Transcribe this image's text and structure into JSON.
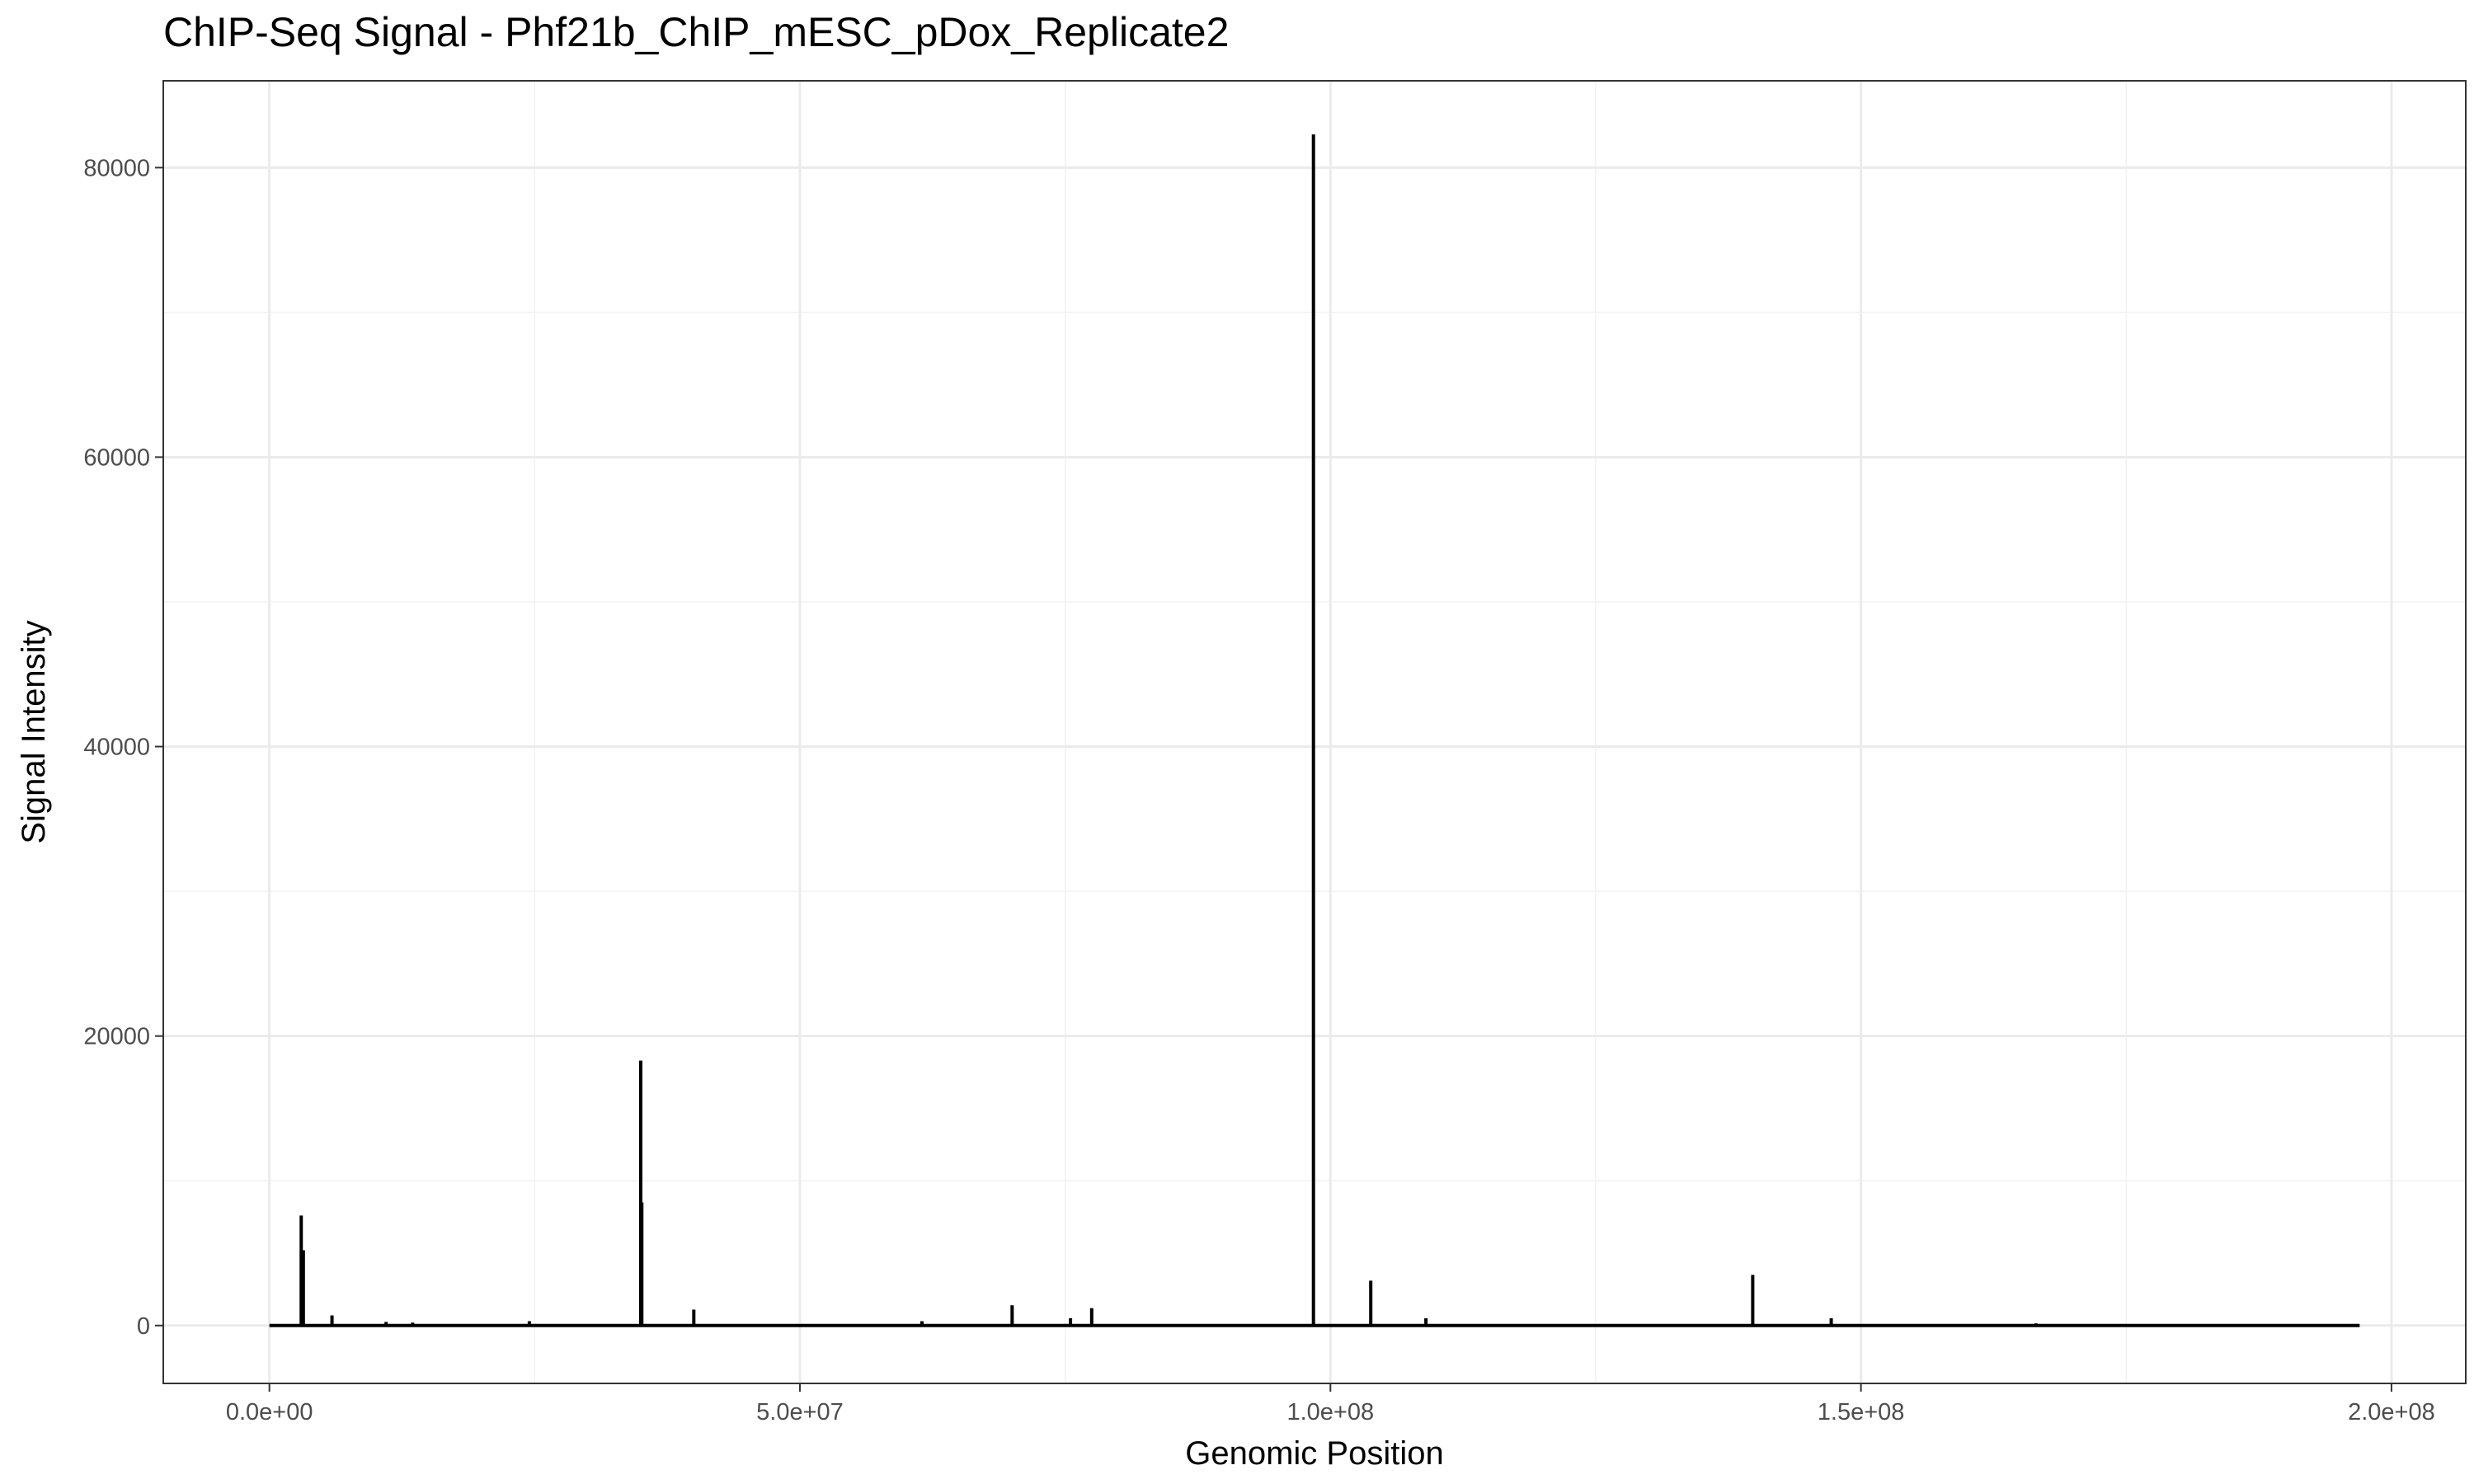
{
  "chart_data": {
    "type": "line",
    "title": "ChIP-Seq Signal - Phf21b_ChIP_mESC_pDox_Replicate2",
    "xlabel": "Genomic Position",
    "ylabel": "Signal Intensity",
    "xlim": [
      -10000000,
      207000000
    ],
    "ylim": [
      -4000,
      86000
    ],
    "x_ticks": [
      {
        "value": 0,
        "label": "0.0e+00"
      },
      {
        "value": 50000000,
        "label": "5.0e+07"
      },
      {
        "value": 100000000,
        "label": "1.0e+08"
      },
      {
        "value": 150000000,
        "label": "1.5e+08"
      },
      {
        "value": 200000000,
        "label": "2.0e+08"
      }
    ],
    "y_ticks": [
      {
        "value": 0,
        "label": "0"
      },
      {
        "value": 20000,
        "label": "20000"
      },
      {
        "value": 40000,
        "label": "40000"
      },
      {
        "value": 60000,
        "label": "60000"
      },
      {
        "value": 80000,
        "label": "80000"
      }
    ],
    "grid": true,
    "line_color": "#000000",
    "peaks": [
      {
        "x": 3000000,
        "y": 7600
      },
      {
        "x": 3200000,
        "y": 5200
      },
      {
        "x": 5900000,
        "y": 700
      },
      {
        "x": 11000000,
        "y": 250
      },
      {
        "x": 13500000,
        "y": 200
      },
      {
        "x": 24500000,
        "y": 300
      },
      {
        "x": 35000000,
        "y": 18300
      },
      {
        "x": 35100000,
        "y": 8500
      },
      {
        "x": 40000000,
        "y": 1100
      },
      {
        "x": 61500000,
        "y": 300
      },
      {
        "x": 70000000,
        "y": 1400
      },
      {
        "x": 75500000,
        "y": 500
      },
      {
        "x": 77500000,
        "y": 1200
      },
      {
        "x": 98400000,
        "y": 82300
      },
      {
        "x": 103800000,
        "y": 3100
      },
      {
        "x": 109000000,
        "y": 500
      },
      {
        "x": 139800000,
        "y": 3500
      },
      {
        "x": 147200000,
        "y": 500
      },
      {
        "x": 166500000,
        "y": 150
      }
    ],
    "x_end": 197000000
  }
}
